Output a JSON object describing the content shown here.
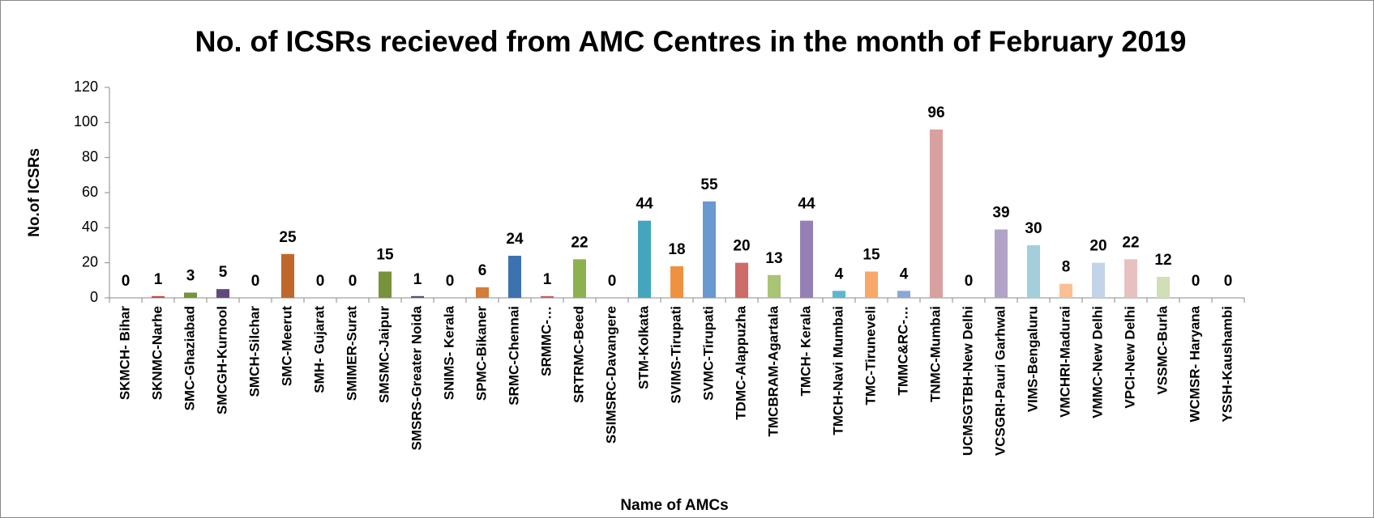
{
  "chart_data": {
    "type": "bar",
    "title": "No. of ICSRs recieved from AMC Centres  in the month of February 2019",
    "xlabel": "Name of AMCs",
    "ylabel": "No.of ICSRs",
    "categories": [
      "SKMCH- Bihar",
      "SKNMC-Narhe",
      "SMC-Ghaziabad",
      "SMCGH-Kurnool",
      "SMCH-Silchar",
      "SMC-Meerut",
      "SMH- Gujarat",
      "SMIMER-Surat",
      "SMSMC-Jaipur",
      "SMSRS-Greater Noida",
      "SNIMS- Kerala",
      "SPMC-Bikaner",
      "SRMC-Chennai",
      "SRMMC-…",
      "SRTRMC-Beed",
      "SSIMSRC-Davangere",
      "STM-Kolkata",
      "SVIMS-Tirupati",
      "SVMC-Tirupati",
      "TDMC-Alappuzha",
      "TMCBRAM-Agartala",
      "TMCH- Kerala",
      "TMCH-Navi Mumbai",
      "TMC-Tiruneveli",
      "TMMC&RC-…",
      "TNMC-Mumbai",
      "UCMSGTBH-New Delhi",
      "VCSGRI-Pauri Garhwal",
      "VIMS-Bengaluru",
      "VMCHRI-Madurai",
      "VMMC-New Delhi",
      "VPCI-New Delhi",
      "VSSMC-Burla",
      "WCMSR- Haryana",
      "YSSH-Kaushambi"
    ],
    "values": [
      0,
      1,
      3,
      5,
      0,
      25,
      0,
      0,
      15,
      1,
      0,
      6,
      24,
      1,
      22,
      0,
      44,
      18,
      55,
      20,
      13,
      44,
      4,
      15,
      4,
      96,
      0,
      39,
      30,
      8,
      20,
      22,
      12,
      0,
      0
    ],
    "colors": [
      "#4f81bd",
      "#c0504d",
      "#77933c",
      "#604a7b",
      "#31849b",
      "#c0672c",
      "#4f81bd",
      "#c0504d",
      "#77933c",
      "#604a7b",
      "#31849b",
      "#d37c3b",
      "#3d72b0",
      "#d05a57",
      "#8eb150",
      "#7a5f9a",
      "#45a5bf",
      "#f0913f",
      "#6a98d1",
      "#cc6b68",
      "#a9c474",
      "#9580b5",
      "#5eb7cf",
      "#f9a86a",
      "#8aa8d6",
      "#d9a0a0",
      "#bcc98f",
      "#b0a3c7",
      "#a3cfdd",
      "#fbbf93",
      "#c3d3ea",
      "#e6c1c0",
      "#d0dfb6",
      "#c9c0dc",
      "#c0dde8"
    ],
    "ylim": [
      0,
      120
    ],
    "yticks": [
      0,
      20,
      40,
      60,
      80,
      100,
      120
    ],
    "grid": false
  }
}
